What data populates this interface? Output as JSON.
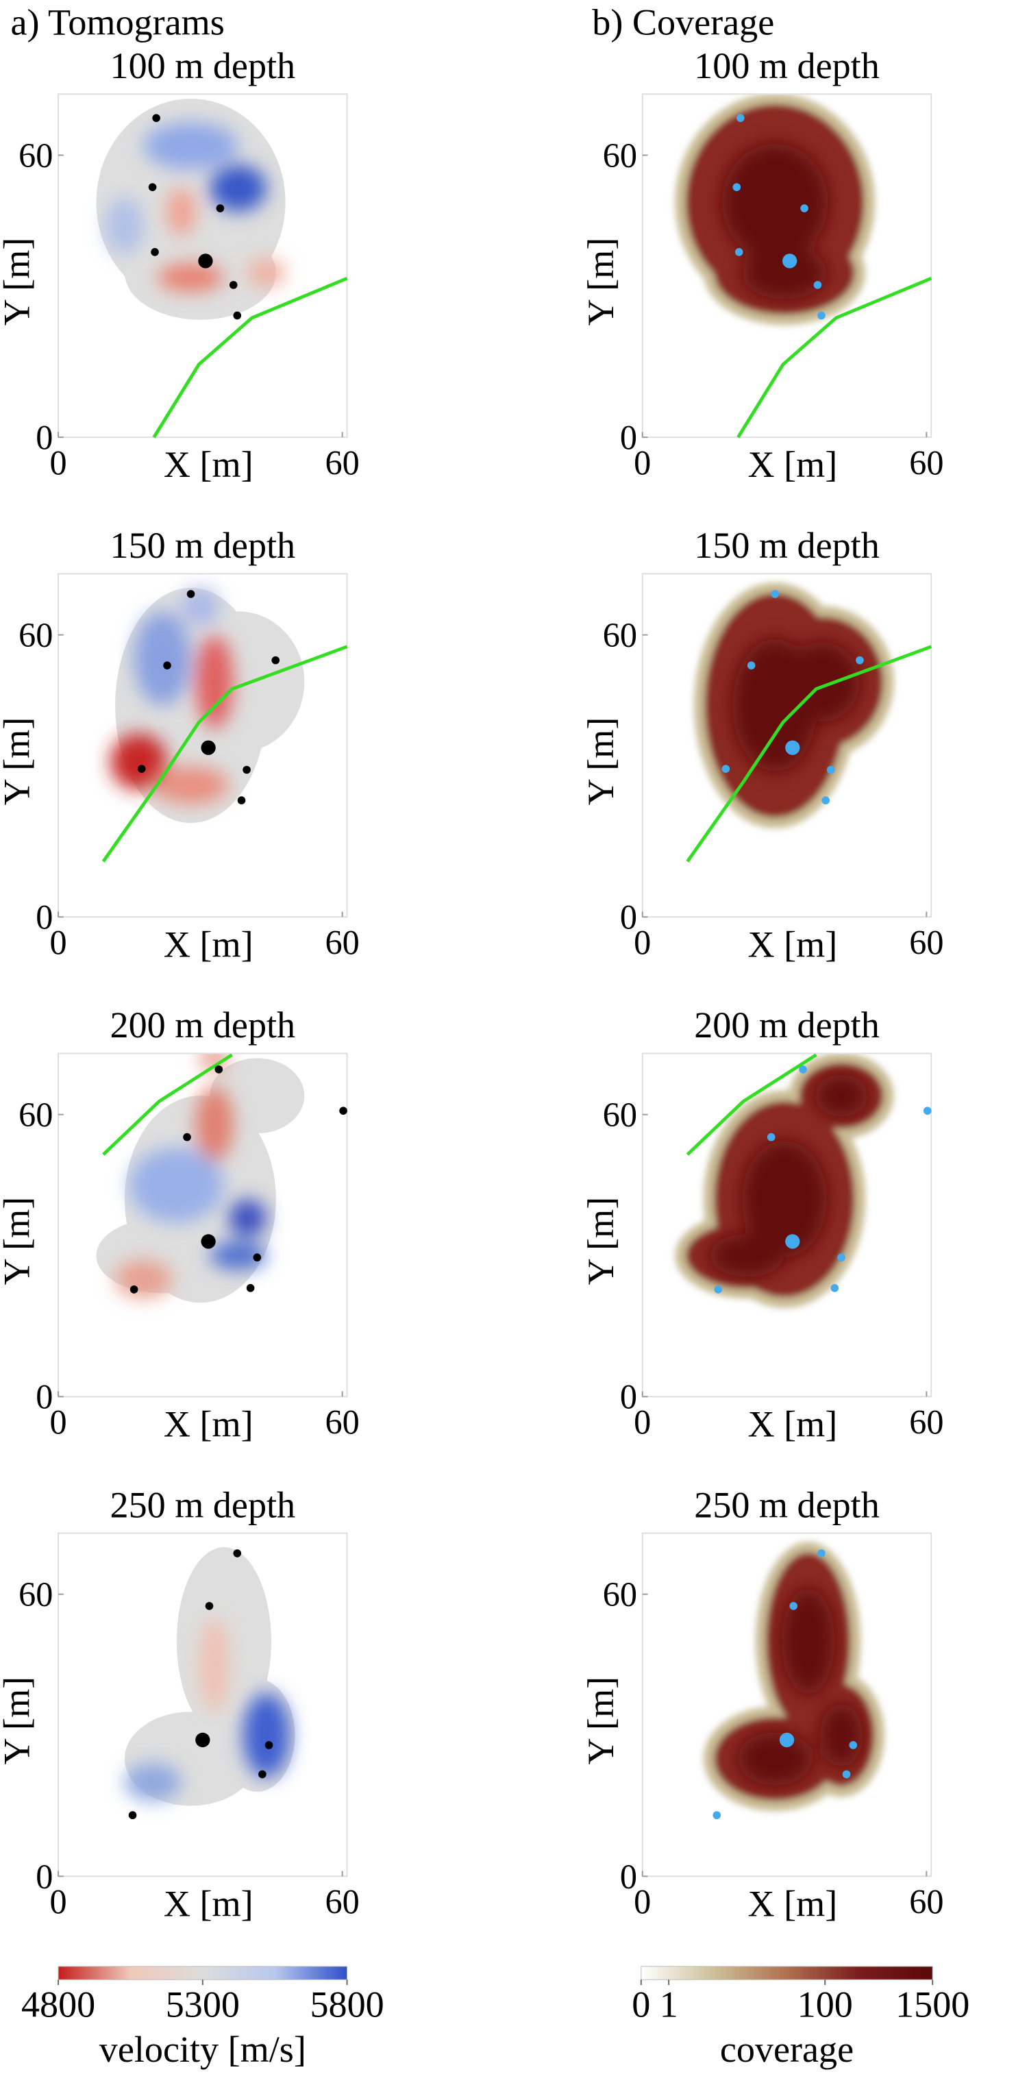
{
  "panel_titles": [
    "a) Tomograms",
    "b) Coverage"
  ],
  "chart_data": [
    {
      "type": "scatter",
      "kind": "tomogram",
      "title": "100 m depth",
      "xlabel": "X [m]",
      "ylabel": "Y [m]",
      "xlim": [
        0,
        61
      ],
      "ylim": [
        0,
        73
      ],
      "xticks": [
        0,
        60
      ],
      "yticks": [
        0,
        60
      ],
      "series": [
        {
          "mode": "line",
          "color": "#33dd22",
          "x": [
            20.2,
            29.7,
            40.9,
            61
          ],
          "values": [
            0,
            15.5,
            25.4,
            33.8
          ]
        },
        {
          "mode": "marker",
          "color": "#000000",
          "x": [
            20.7,
            19.9,
            34.2,
            20.4,
            37.0,
            37.8
          ],
          "values": [
            67.9,
            53.2,
            48.7,
            39.4,
            32.4,
            25.9
          ]
        },
        {
          "mode": "large-marker",
          "color": "#000000",
          "x": [
            31.1
          ],
          "values": [
            37.5
          ]
        }
      ]
    },
    {
      "type": "scatter",
      "kind": "coverage",
      "title": "100 m depth",
      "xlabel": "X [m]",
      "ylabel": "Y [m]",
      "xlim": [
        0,
        61
      ],
      "ylim": [
        0,
        73
      ],
      "xticks": [
        0,
        60
      ],
      "yticks": [
        0,
        60
      ],
      "series": [
        {
          "mode": "line",
          "color": "#33dd22",
          "x": [
            20.2,
            29.7,
            40.9,
            61
          ],
          "values": [
            0,
            15.5,
            25.4,
            33.8
          ]
        },
        {
          "mode": "marker",
          "color": "#44aaee",
          "x": [
            20.7,
            19.9,
            34.2,
            20.4,
            37.0,
            37.8
          ],
          "values": [
            67.9,
            53.2,
            48.7,
            39.4,
            32.4,
            25.9
          ]
        },
        {
          "mode": "large-marker",
          "color": "#44aaee",
          "x": [
            31.1
          ],
          "values": [
            37.5
          ]
        }
      ]
    },
    {
      "type": "scatter",
      "kind": "tomogram",
      "title": "150 m depth",
      "xlabel": "X [m]",
      "ylabel": "Y [m]",
      "xlim": [
        0,
        61
      ],
      "ylim": [
        0,
        73
      ],
      "xticks": [
        0,
        60
      ],
      "yticks": [
        0,
        60
      ],
      "series": [
        {
          "mode": "line",
          "color": "#33dd22",
          "x": [
            9.5,
            21.3,
            29.7,
            36.7,
            61
          ],
          "values": [
            11.8,
            28.7,
            41.4,
            48.5,
            57.5
          ]
        },
        {
          "mode": "marker",
          "color": "#000000",
          "x": [
            28,
            23,
            45.9,
            17.6,
            39.8,
            38.7
          ],
          "values": [
            68.7,
            53.5,
            54.6,
            31.5,
            31.3,
            24.8
          ]
        },
        {
          "mode": "large-marker",
          "color": "#000000",
          "x": [
            31.7
          ],
          "values": [
            36
          ]
        }
      ]
    },
    {
      "type": "scatter",
      "kind": "coverage",
      "title": "150 m depth",
      "xlabel": "X [m]",
      "ylabel": "Y [m]",
      "xlim": [
        0,
        61
      ],
      "ylim": [
        0,
        73
      ],
      "xticks": [
        0,
        60
      ],
      "yticks": [
        0,
        60
      ],
      "series": [
        {
          "mode": "line",
          "color": "#33dd22",
          "x": [
            9.5,
            21.3,
            29.7,
            36.7,
            61
          ],
          "values": [
            11.8,
            28.7,
            41.4,
            48.5,
            57.5
          ]
        },
        {
          "mode": "marker",
          "color": "#44aaee",
          "x": [
            28,
            23,
            45.9,
            17.6,
            39.8,
            38.7
          ],
          "values": [
            68.7,
            53.5,
            54.6,
            31.5,
            31.3,
            24.8
          ]
        },
        {
          "mode": "large-marker",
          "color": "#44aaee",
          "x": [
            31.7
          ],
          "values": [
            36
          ]
        }
      ]
    },
    {
      "type": "scatter",
      "kind": "tomogram",
      "title": "200 m depth",
      "xlabel": "X [m]",
      "ylabel": "Y [m]",
      "xlim": [
        0,
        61
      ],
      "ylim": [
        0,
        73
      ],
      "xticks": [
        0,
        60
      ],
      "yticks": [
        0,
        60
      ],
      "series": [
        {
          "mode": "line",
          "color": "#33dd22",
          "x": [
            9.5,
            21.3,
            36.7
          ],
          "values": [
            51.5,
            62.8,
            72.7
          ]
        },
        {
          "mode": "marker",
          "color": "#000000",
          "x": [
            33.9,
            27.2,
            60.2,
            42,
            40.6,
            16
          ],
          "values": [
            69.6,
            55.2,
            60.8,
            29.6,
            23.1,
            22.8
          ]
        },
        {
          "mode": "large-marker",
          "color": "#000000",
          "x": [
            31.7
          ],
          "values": [
            33
          ]
        }
      ]
    },
    {
      "type": "scatter",
      "kind": "coverage",
      "title": "200 m depth",
      "xlabel": "X [m]",
      "ylabel": "Y [m]",
      "xlim": [
        0,
        61
      ],
      "ylim": [
        0,
        73
      ],
      "xticks": [
        0,
        60
      ],
      "yticks": [
        0,
        60
      ],
      "series": [
        {
          "mode": "line",
          "color": "#33dd22",
          "x": [
            9.5,
            21.3,
            36.7
          ],
          "values": [
            51.5,
            62.8,
            72.7
          ]
        },
        {
          "mode": "marker",
          "color": "#44aaee",
          "x": [
            33.9,
            27.2,
            60.2,
            42,
            40.6,
            16
          ],
          "values": [
            69.6,
            55.2,
            60.8,
            29.6,
            23.1,
            22.8
          ]
        },
        {
          "mode": "large-marker",
          "color": "#44aaee",
          "x": [
            31.7
          ],
          "values": [
            33
          ]
        }
      ]
    },
    {
      "type": "scatter",
      "kind": "tomogram",
      "title": "250 m depth",
      "xlabel": "X [m]",
      "ylabel": "Y [m]",
      "xlim": [
        0,
        61
      ],
      "ylim": [
        0,
        73
      ],
      "xticks": [
        0,
        60
      ],
      "yticks": [
        0,
        60
      ],
      "series": [
        {
          "mode": "marker",
          "color": "#000000",
          "x": [
            37.8,
            31.9,
            44.5,
            43.1,
            15.7
          ],
          "values": [
            68.7,
            57.5,
            27.9,
            21.7,
            13
          ]
        },
        {
          "mode": "large-marker",
          "color": "#000000",
          "x": [
            30.5
          ],
          "values": [
            29
          ]
        }
      ]
    },
    {
      "type": "scatter",
      "kind": "coverage",
      "title": "250 m depth",
      "xlabel": "X [m]",
      "ylabel": "Y [m]",
      "xlim": [
        0,
        61
      ],
      "ylim": [
        0,
        73
      ],
      "xticks": [
        0,
        60
      ],
      "yticks": [
        0,
        60
      ],
      "series": [
        {
          "mode": "marker",
          "color": "#44aaee",
          "x": [
            37.8,
            31.9,
            44.5,
            43.1,
            15.7
          ],
          "values": [
            68.7,
            57.5,
            27.9,
            21.7,
            13
          ]
        },
        {
          "mode": "large-marker",
          "color": "#44aaee",
          "x": [
            30.5
          ],
          "values": [
            29
          ]
        }
      ]
    },
    {
      "type": "colorbar",
      "label": "velocity [m/s]",
      "clim": [
        4800,
        5800
      ],
      "ticks": [
        4800,
        5300,
        5800
      ],
      "scale": "linear",
      "colors": [
        "#c41e1e",
        "#f0c8b8",
        "#dcdcdc",
        "#b8c8ee",
        "#2e4fc8"
      ]
    },
    {
      "type": "colorbar",
      "label": "coverage",
      "clim": [
        0,
        1500
      ],
      "ticks": [
        0,
        1,
        100,
        1500
      ],
      "scale": "log1p",
      "colors": [
        "#ffffff",
        "#cdbf98",
        "#b07050",
        "#7a1c1c",
        "#5a0808"
      ]
    }
  ]
}
